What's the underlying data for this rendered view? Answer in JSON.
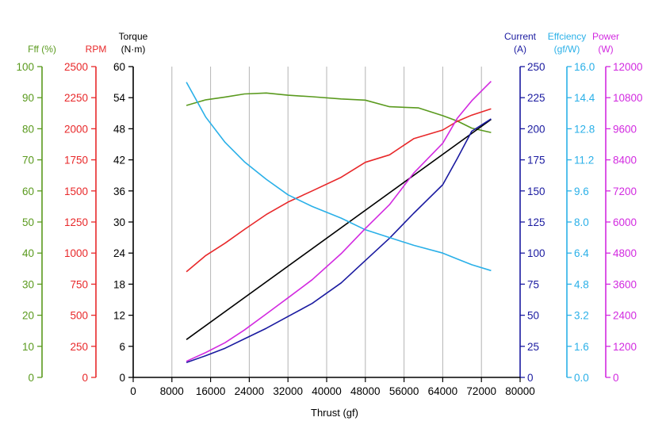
{
  "chart_data": {
    "type": "line",
    "xlabel": "Thrust (gf)",
    "xlim": [
      0,
      80000
    ],
    "xticks": [
      0,
      8000,
      16000,
      24000,
      32000,
      40000,
      48000,
      56000,
      64000,
      72000,
      80000
    ],
    "grid": "vertical",
    "axes": [
      {
        "key": "fff",
        "title": "Fff (%)",
        "unit": "",
        "color": "#5a9a1e",
        "min": 0,
        "max": 100,
        "step": 10,
        "decimals": 0
      },
      {
        "key": "rpm",
        "title": "RPM",
        "unit": "",
        "color": "#e8282a",
        "min": 0,
        "max": 2500,
        "step": 250,
        "decimals": 0
      },
      {
        "key": "torque",
        "title": "Torque",
        "unit": "(N·m)",
        "color": "#000000",
        "min": 0,
        "max": 60,
        "step": 6,
        "decimals": 0
      },
      {
        "key": "current",
        "title": "Current",
        "unit": "(A)",
        "color": "#1a1aa0",
        "min": 0,
        "max": 250,
        "step": 25,
        "decimals": 0
      },
      {
        "key": "efficiency",
        "title": "Effciency",
        "unit": "(gf/W)",
        "color": "#2ab0e8",
        "min": 0,
        "max": 16,
        "step": 1.6,
        "decimals": 1
      },
      {
        "key": "power",
        "title": "Power",
        "unit": "(W)",
        "color": "#d22ae0",
        "min": 0,
        "max": 12000,
        "step": 1200,
        "decimals": 0
      }
    ],
    "series": [
      {
        "axis": "fff",
        "color": "#5a9a1e",
        "x": [
          11000,
          15000,
          19000,
          23000,
          27500,
          32000,
          37000,
          43000,
          48000,
          53000,
          59000,
          64000,
          67000,
          70000,
          74000
        ],
        "y": [
          87.5,
          89.3,
          90.2,
          91.2,
          91.5,
          90.8,
          90.3,
          89.6,
          89.2,
          87.1,
          86.7,
          84.2,
          82.5,
          80.2,
          78.8
        ]
      },
      {
        "axis": "rpm",
        "color": "#e8282a",
        "x": [
          11000,
          15000,
          19000,
          23000,
          27500,
          32000,
          37000,
          43000,
          48000,
          53000,
          58000,
          64000,
          67000,
          70000,
          74000
        ],
        "y": [
          850,
          980,
          1080,
          1190,
          1310,
          1410,
          1500,
          1610,
          1730,
          1790,
          1920,
          1990,
          2060,
          2110,
          2160
        ]
      },
      {
        "axis": "torque",
        "color": "#000000",
        "x": [
          11000,
          74000
        ],
        "y": [
          7.3,
          49.8
        ]
      },
      {
        "axis": "current",
        "color": "#1a1aa0",
        "x": [
          11000,
          15000,
          19000,
          23000,
          27500,
          32000,
          37000,
          43000,
          48000,
          53000,
          58000,
          64000,
          67000,
          70000,
          74000
        ],
        "y": [
          12,
          17.5,
          23.5,
          31,
          39.5,
          49,
          59.5,
          76,
          94,
          112,
          132,
          155,
          176,
          198,
          208
        ]
      },
      {
        "axis": "efficiency",
        "color": "#2ab0e8",
        "x": [
          11000,
          15000,
          19000,
          23000,
          27500,
          32000,
          37000,
          43000,
          48000,
          53000,
          58000,
          64000,
          67000,
          70000,
          74000
        ],
        "y": [
          15.2,
          13.4,
          12.1,
          11.1,
          10.2,
          9.4,
          8.8,
          8.2,
          7.6,
          7.2,
          6.8,
          6.4,
          6.1,
          5.8,
          5.5
        ]
      },
      {
        "axis": "power",
        "color": "#d22ae0",
        "x": [
          11000,
          15000,
          19000,
          23000,
          27500,
          32000,
          37000,
          43000,
          48000,
          53000,
          58000,
          64000,
          67000,
          70000,
          74000
        ],
        "y": [
          620,
          960,
          1340,
          1830,
          2450,
          3070,
          3770,
          4780,
          5750,
          6670,
          7890,
          9040,
          10000,
          10680,
          11430
        ]
      }
    ]
  }
}
